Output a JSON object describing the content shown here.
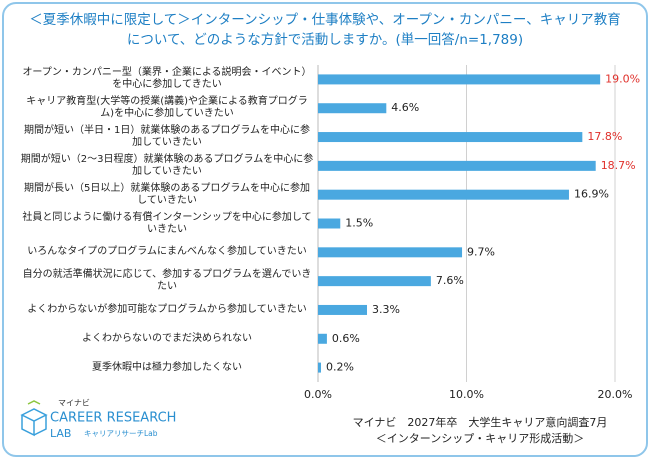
{
  "chart_data": {
    "type": "barh",
    "title": [
      "＜夏季休暇中に限定して＞インターンシップ・仕事体験や、オープン・カンパニー、キャリア教育",
      "について、どのような方針で活動しますか。(単一回答/n=1,789)"
    ],
    "categories": [
      "オープン・カンパニー型（業界・企業による説明会・イベント）を中心に参加してきたい",
      "キャリア教育型(大学等の授業(講義)や企業による教育プログラム)を中心に参加していきたい",
      "期間が短い（半日・1日）就業体験のあるプログラムを中心に参加していきたい",
      "期間が短い（2～3日程度）就業体験のあるプログラムを中心に参加していきたい",
      "期間が長い（5日以上）就業体験のあるプログラムを中心に参加していきたい",
      "社員と同じように働ける有償インターンシップを中心に参加していきたい",
      "いろんなタイプのプログラムにまんべんなく参加していきたい",
      "自分の就活準備状況に応じて、参加するプログラムを選んでいきたい",
      "よくわからないが参加可能なプログラムから参加していきたい",
      "よくわからないのでまだ決められない",
      "夏季休暇中は極力参加したくない"
    ],
    "values": [
      19.0,
      4.6,
      17.8,
      18.7,
      16.9,
      1.5,
      9.7,
      7.6,
      3.3,
      0.6,
      0.2
    ],
    "value_labels": [
      "19.0%",
      "4.6%",
      "17.8%",
      "18.7%",
      "16.9%",
      "1.5%",
      "9.7%",
      "7.6%",
      "3.3%",
      "0.6%",
      "0.2%"
    ],
    "value_label_colors": [
      "#e0302b",
      "#222222",
      "#e0302b",
      "#e0302b",
      "#222222",
      "#222222",
      "#222222",
      "#222222",
      "#222222",
      "#222222",
      "#222222"
    ],
    "color": "#4aa8e0",
    "xlim": [
      0,
      20
    ],
    "xticks": [
      {
        "value": 0,
        "label": "0.0%"
      },
      {
        "value": 10,
        "label": "10.0%"
      },
      {
        "value": 20,
        "label": "20.0%"
      }
    ],
    "grid": true,
    "source": [
      "マイナビ　2027年卒　大学生キャリア意向調査7月",
      "＜インターンシップ・キャリア形成活動＞"
    ],
    "logo": [
      "マイナビ",
      "CAREER RESEARCH",
      "LAB",
      "キャリアリサーチLab"
    ]
  }
}
